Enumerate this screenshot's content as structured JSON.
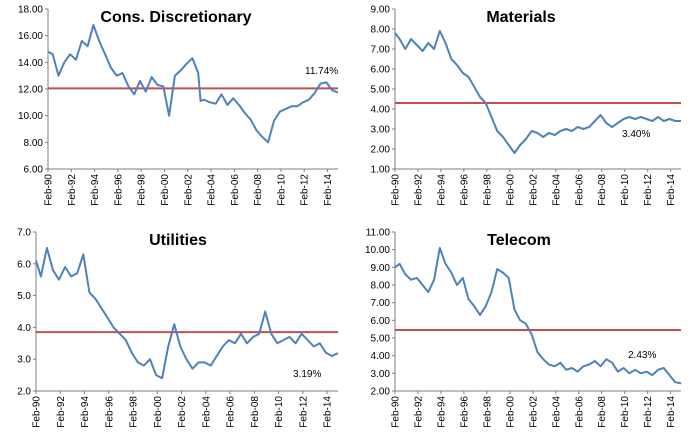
{
  "chart_data": [
    {
      "type": "line",
      "title": "Cons. Discretionary",
      "xlabel": "",
      "ylabel": "",
      "ylim": [
        6.0,
        18.0
      ],
      "yticks": [
        "18.00",
        "16.00",
        "14.00",
        "12.00",
        "10.00",
        "8.00",
        "6.00"
      ],
      "xticks": [
        "Feb-90",
        "Feb-92",
        "Feb-94",
        "Feb-96",
        "Feb-98",
        "Feb-00",
        "Feb-02",
        "Feb-04",
        "Feb-06",
        "Feb-08",
        "Feb-10",
        "Feb-12",
        "Feb-14"
      ],
      "average": 12.05,
      "annotation": "11.74%",
      "series_color": "#4f81bd",
      "average_color": "#c0504d",
      "x": [
        1990.1,
        1990.5,
        1991.0,
        1991.5,
        1992.0,
        1992.5,
        1993.0,
        1993.5,
        1994.0,
        1994.5,
        1995.0,
        1995.5,
        1996.0,
        1996.5,
        1997.0,
        1997.5,
        1998.0,
        1998.5,
        1999.0,
        1999.5,
        2000.0,
        2000.5,
        2001.0,
        2001.5,
        2002.0,
        2002.5,
        2003.0,
        2003.2,
        2003.5,
        2004.0,
        2004.5,
        2005.0,
        2005.5,
        2006.0,
        2006.5,
        2007.0,
        2007.5,
        2008.0,
        2008.5,
        2009.0,
        2009.5,
        2010.0,
        2010.5,
        2011.0,
        2011.5,
        2012.0,
        2012.5,
        2013.0,
        2013.5,
        2014.0,
        2014.5,
        2015.0
      ],
      "y": [
        14.8,
        14.6,
        13.0,
        14.0,
        14.6,
        14.2,
        15.6,
        15.2,
        16.8,
        15.6,
        14.6,
        13.6,
        13.0,
        13.2,
        12.2,
        11.6,
        12.6,
        11.8,
        12.9,
        12.3,
        12.2,
        10.0,
        13.0,
        13.4,
        13.9,
        14.3,
        13.2,
        11.1,
        11.2,
        11.0,
        10.9,
        11.6,
        10.8,
        11.3,
        10.8,
        10.2,
        9.7,
        8.9,
        8.4,
        8.0,
        9.6,
        10.3,
        10.5,
        10.7,
        10.7,
        11.0,
        11.2,
        11.7,
        12.4,
        12.5,
        11.9,
        11.74
      ]
    },
    {
      "type": "line",
      "title": "Materials",
      "xlabel": "",
      "ylabel": "",
      "ylim": [
        1.0,
        9.0
      ],
      "yticks": [
        "9.00",
        "8.00",
        "7.00",
        "6.00",
        "5.00",
        "4.00",
        "3.00",
        "2.00",
        "1.00"
      ],
      "xticks": [
        "Feb-90",
        "Feb-92",
        "Feb-94",
        "Feb-96",
        "Feb-98",
        "Feb-00",
        "Feb-02",
        "Feb-04",
        "Feb-06",
        "Feb-08",
        "Feb-10",
        "Feb-12",
        "Feb-14"
      ],
      "average": 4.3,
      "annotation": "3.40%",
      "series_color": "#4f81bd",
      "average_color": "#c0504d",
      "x": [
        1990.1,
        1990.5,
        1991.0,
        1991.5,
        1992.0,
        1992.5,
        1993.0,
        1993.5,
        1994.0,
        1994.5,
        1995.0,
        1995.5,
        1996.0,
        1996.5,
        1997.0,
        1997.5,
        1998.0,
        1998.5,
        1999.0,
        1999.5,
        2000.0,
        2000.5,
        2001.0,
        2001.5,
        2002.0,
        2002.5,
        2003.0,
        2003.5,
        2004.0,
        2004.5,
        2005.0,
        2005.5,
        2006.0,
        2006.5,
        2007.0,
        2007.5,
        2008.0,
        2008.5,
        2009.0,
        2009.5,
        2010.0,
        2010.5,
        2011.0,
        2011.5,
        2012.0,
        2012.5,
        2013.0,
        2013.5,
        2014.0,
        2014.5,
        2015.0
      ],
      "y": [
        7.8,
        7.5,
        7.0,
        7.5,
        7.2,
        6.9,
        7.3,
        7.0,
        7.9,
        7.3,
        6.5,
        6.2,
        5.8,
        5.6,
        5.1,
        4.6,
        4.3,
        3.6,
        2.9,
        2.6,
        2.2,
        1.8,
        2.2,
        2.5,
        2.9,
        2.8,
        2.6,
        2.8,
        2.7,
        2.9,
        3.0,
        2.9,
        3.1,
        3.0,
        3.1,
        3.4,
        3.7,
        3.3,
        3.1,
        3.3,
        3.5,
        3.6,
        3.5,
        3.6,
        3.5,
        3.4,
        3.6,
        3.4,
        3.5,
        3.4,
        3.4
      ]
    },
    {
      "type": "line",
      "title": "Utilities",
      "xlabel": "",
      "ylabel": "",
      "ylim": [
        2.0,
        7.0
      ],
      "yticks": [
        "7.0",
        "6.0",
        "5.0",
        "4.0",
        "3.0",
        "2.0"
      ],
      "xticks": [
        "Feb-90",
        "Feb-92",
        "Feb-94",
        "Feb-96",
        "Feb-98",
        "Feb-00",
        "Feb-02",
        "Feb-04",
        "Feb-06",
        "Feb-08",
        "Feb-10",
        "Feb-12",
        "Feb-14"
      ],
      "average": 3.85,
      "annotation": "3.19%",
      "series_color": "#4f81bd",
      "average_color": "#c0504d",
      "x": [
        1990.1,
        1990.5,
        1991.0,
        1991.5,
        1992.0,
        1992.5,
        1993.0,
        1993.5,
        1994.0,
        1994.5,
        1995.0,
        1995.5,
        1996.0,
        1996.5,
        1997.0,
        1997.5,
        1998.0,
        1998.5,
        1999.0,
        1999.5,
        2000.0,
        2000.5,
        2001.0,
        2001.5,
        2002.0,
        2002.5,
        2003.0,
        2003.5,
        2004.0,
        2004.5,
        2005.0,
        2005.5,
        2006.0,
        2006.5,
        2007.0,
        2007.5,
        2008.0,
        2008.5,
        2009.0,
        2009.5,
        2010.0,
        2010.5,
        2011.0,
        2011.5,
        2012.0,
        2012.5,
        2013.0,
        2013.5,
        2014.0,
        2014.5,
        2015.0
      ],
      "y": [
        6.1,
        5.6,
        6.5,
        5.8,
        5.5,
        5.9,
        5.6,
        5.7,
        6.3,
        5.1,
        4.9,
        4.6,
        4.3,
        4.0,
        3.8,
        3.6,
        3.2,
        2.9,
        2.8,
        3.0,
        2.5,
        2.4,
        3.4,
        4.1,
        3.4,
        3.0,
        2.7,
        2.9,
        2.9,
        2.8,
        3.1,
        3.4,
        3.6,
        3.5,
        3.8,
        3.5,
        3.7,
        3.8,
        4.5,
        3.8,
        3.5,
        3.6,
        3.7,
        3.5,
        3.8,
        3.6,
        3.4,
        3.5,
        3.2,
        3.1,
        3.19
      ]
    },
    {
      "type": "line",
      "title": "Telecom",
      "xlabel": "",
      "ylabel": "",
      "ylim": [
        2.0,
        11.0
      ],
      "yticks": [
        "11.00",
        "10.00",
        "9.00",
        "8.00",
        "7.00",
        "6.00",
        "5.00",
        "4.00",
        "3.00",
        "2.00"
      ],
      "xticks": [
        "Feb-90",
        "Feb-92",
        "Feb-94",
        "Feb-96",
        "Feb-98",
        "Feb-00",
        "Feb-02",
        "Feb-04",
        "Feb-06",
        "Feb-08",
        "Feb-10",
        "Feb-12",
        "Feb-14"
      ],
      "average": 5.45,
      "annotation": "2.43%",
      "series_color": "#4f81bd",
      "average_color": "#c0504d",
      "x": [
        1990.1,
        1990.5,
        1991.0,
        1991.5,
        1992.0,
        1992.5,
        1993.0,
        1993.5,
        1994.0,
        1994.5,
        1995.0,
        1995.5,
        1996.0,
        1996.5,
        1997.0,
        1997.5,
        1998.0,
        1998.5,
        1999.0,
        1999.5,
        2000.0,
        2000.5,
        2001.0,
        2001.5,
        2002.0,
        2002.5,
        2003.0,
        2003.5,
        2004.0,
        2004.5,
        2005.0,
        2005.5,
        2006.0,
        2006.5,
        2007.0,
        2007.5,
        2008.0,
        2008.5,
        2009.0,
        2009.5,
        2010.0,
        2010.5,
        2011.0,
        2011.5,
        2012.0,
        2012.5,
        2013.0,
        2013.5,
        2014.0,
        2014.5,
        2015.0
      ],
      "y": [
        9.0,
        9.2,
        8.6,
        8.3,
        8.4,
        8.0,
        7.6,
        8.3,
        10.1,
        9.2,
        8.7,
        8.0,
        8.4,
        7.2,
        6.8,
        6.3,
        6.8,
        7.6,
        8.9,
        8.7,
        8.4,
        6.6,
        6.0,
        5.8,
        5.2,
        4.2,
        3.8,
        3.5,
        3.4,
        3.6,
        3.2,
        3.3,
        3.1,
        3.4,
        3.5,
        3.7,
        3.4,
        3.8,
        3.6,
        3.1,
        3.3,
        3.0,
        3.2,
        3.0,
        3.1,
        2.9,
        3.2,
        3.3,
        2.9,
        2.5,
        2.43
      ]
    }
  ]
}
